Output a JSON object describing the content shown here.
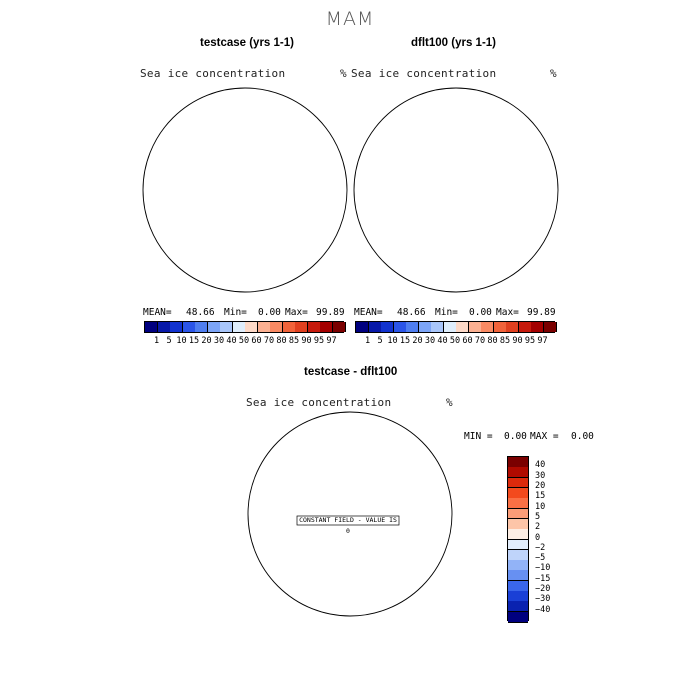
{
  "season": "MAM",
  "panels": [
    {
      "title": "testcase (yrs 1-1)",
      "subtitle": "Sea ice concentration",
      "unit": "%",
      "stats": {
        "mean_label": "MEAN=",
        "mean": "48.66",
        "min_label": "Min=",
        "min": "0.00",
        "max_label": "Max=",
        "max": "99.89"
      }
    },
    {
      "title": "dflt100 (yrs 1-1)",
      "subtitle": "Sea ice concentration",
      "unit": "%",
      "stats": {
        "mean_label": "MEAN=",
        "mean": "48.66",
        "min_label": "Min=",
        "min": "0.00",
        "max_label": "Max=",
        "max": "99.89"
      }
    }
  ],
  "diff": {
    "title": "testcase - dflt100",
    "subtitle": "Sea ice concentration",
    "unit": "%",
    "stats": {
      "min_label": "MIN =",
      "min": "0.00",
      "max_label": "MAX =",
      "max": "0.00"
    },
    "annotation": "CONSTANT FIELD - VALUE IS 0"
  },
  "colorbar_abs": {
    "labels": [
      "1",
      "5",
      "10",
      "15",
      "20",
      "30",
      "40",
      "50",
      "60",
      "70",
      "80",
      "85",
      "90",
      "95",
      "97"
    ],
    "colors": [
      "#00007f",
      "#0819a8",
      "#1233cf",
      "#2b55e8",
      "#4f7ef0",
      "#7ca4f6",
      "#a9c6fa",
      "#dfeefc",
      "#fdd9c7",
      "#fbb091",
      "#f98a63",
      "#f1633a",
      "#e0401f",
      "#c61a0c",
      "#a30000",
      "#7a0000"
    ]
  },
  "colorbar_diff": {
    "labels": [
      "40",
      "30",
      "20",
      "15",
      "10",
      "5",
      "2",
      "0",
      "−2",
      "−5",
      "−10",
      "−15",
      "−20",
      "−30",
      "−40"
    ],
    "colors": [
      "#7a0000",
      "#b00a00",
      "#dc2a0c",
      "#f34a1d",
      "#fa7045",
      "#fc9d78",
      "#fdc5a8",
      "#fdeee4",
      "#e3eefc",
      "#bfd4fa",
      "#92b3f7",
      "#6790f2",
      "#3a66ea",
      "#1a40d6",
      "#0a22b0",
      "#00007f"
    ]
  },
  "colors": {
    "ice_core": "#800000",
    "ice_edge_warm": "#e8552b",
    "ice_edge_cool": "#3a6ae8",
    "coast": "#000000"
  }
}
